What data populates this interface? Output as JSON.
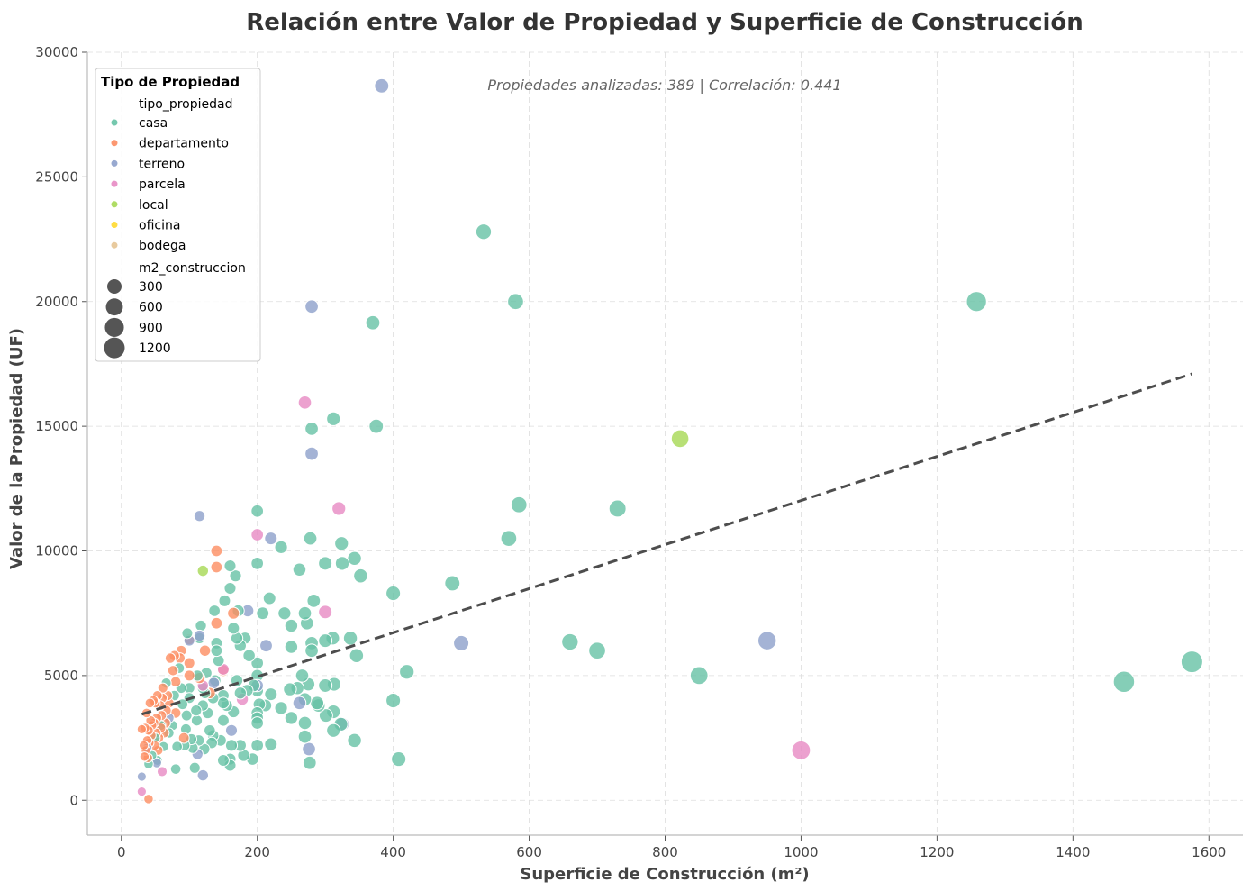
{
  "chart_data": {
    "type": "scatter",
    "title": "Relación entre Valor de Propiedad y Superficie de Construcción",
    "xlabel": "Superficie de Construcción (m²)",
    "ylabel": "Valor de la Propiedad (UF)",
    "xlim": [
      -50,
      1650
    ],
    "ylim": [
      -1400,
      30000
    ],
    "xticks": [
      0,
      200,
      400,
      600,
      800,
      1000,
      1200,
      1400,
      1600
    ],
    "yticks": [
      0,
      5000,
      10000,
      15000,
      20000,
      25000,
      30000
    ],
    "grid": true,
    "annotation": "Propiedades analizadas: 389 | Correlación: 0.441",
    "trendline": {
      "x": [
        30,
        1575
      ],
      "y": [
        3450,
        17100
      ],
      "style": "dashed",
      "color": "#4d4d4d"
    },
    "legend": {
      "title": "Tipo de Propiedad",
      "placement": "top-left",
      "hue_label": "tipo_propiedad",
      "size_label": "m2_construccion",
      "size_values": [
        300,
        600,
        900,
        1200
      ]
    },
    "series": [
      {
        "name": "casa",
        "color": "#66c2a5",
        "points": [
          [
            1575,
            5550
          ],
          [
            1475,
            4750
          ],
          [
            1258,
            20000
          ],
          [
            850,
            5000
          ],
          [
            730,
            11700
          ],
          [
            700,
            6000
          ],
          [
            660,
            6350
          ],
          [
            585,
            11850
          ],
          [
            580,
            20000
          ],
          [
            570,
            10500
          ],
          [
            533,
            22800
          ],
          [
            487,
            8700
          ],
          [
            420,
            5150
          ],
          [
            408,
            1650
          ],
          [
            400,
            8300
          ],
          [
            400,
            4000
          ],
          [
            375,
            15000
          ],
          [
            370,
            19150
          ],
          [
            352,
            9000
          ],
          [
            346,
            5800
          ],
          [
            343,
            9700
          ],
          [
            343,
            2400
          ],
          [
            337,
            6500
          ],
          [
            325,
            9500
          ],
          [
            324,
            10300
          ],
          [
            323,
            3050
          ],
          [
            313,
            4650
          ],
          [
            312,
            15300
          ],
          [
            312,
            3550
          ],
          [
            311,
            6500
          ],
          [
            312,
            2800
          ],
          [
            301,
            3400
          ],
          [
            300,
            6400
          ],
          [
            300,
            9500
          ],
          [
            300,
            4600
          ],
          [
            290,
            3800
          ],
          [
            288,
            3900
          ],
          [
            283,
            8000
          ],
          [
            280,
            14900
          ],
          [
            280,
            6300
          ],
          [
            280,
            6000
          ],
          [
            278,
            10500
          ],
          [
            277,
            1500
          ],
          [
            275,
            4650
          ],
          [
            273,
            7100
          ],
          [
            270,
            7500
          ],
          [
            270,
            4050
          ],
          [
            270,
            3100
          ],
          [
            270,
            2550
          ],
          [
            266,
            5000
          ],
          [
            262,
            9250
          ],
          [
            259,
            4500
          ],
          [
            250,
            7000
          ],
          [
            250,
            6150
          ],
          [
            250,
            3300
          ],
          [
            248,
            4450
          ],
          [
            240,
            7500
          ],
          [
            235,
            10150
          ],
          [
            235,
            3700
          ],
          [
            220,
            4250
          ],
          [
            218,
            8100
          ],
          [
            220,
            2250
          ],
          [
            212,
            3800
          ],
          [
            208,
            7500
          ],
          [
            203,
            3850
          ],
          [
            200,
            11600
          ],
          [
            200,
            9500
          ],
          [
            200,
            5500
          ],
          [
            200,
            5000
          ],
          [
            200,
            4400
          ],
          [
            200,
            3500
          ],
          [
            200,
            3300
          ],
          [
            200,
            3100
          ],
          [
            200,
            2200
          ],
          [
            195,
            4600
          ],
          [
            193,
            1650
          ],
          [
            188,
            5800
          ],
          [
            185,
            4400
          ],
          [
            182,
            6500
          ],
          [
            180,
            1800
          ],
          [
            175,
            6200
          ],
          [
            175,
            4300
          ],
          [
            175,
            2200
          ],
          [
            172,
            7600
          ],
          [
            170,
            4800
          ],
          [
            170,
            6500
          ],
          [
            168,
            9000
          ],
          [
            165,
            6900
          ],
          [
            165,
            3550
          ],
          [
            162,
            2200
          ],
          [
            160,
            9400
          ],
          [
            160,
            8500
          ],
          [
            160,
            1650
          ],
          [
            160,
            1400
          ],
          [
            155,
            3800
          ],
          [
            152,
            8000
          ],
          [
            150,
            4200
          ],
          [
            150,
            3900
          ],
          [
            150,
            3200
          ],
          [
            150,
            1600
          ],
          [
            146,
            2400
          ],
          [
            143,
            5600
          ],
          [
            140,
            6300
          ],
          [
            140,
            6000
          ],
          [
            138,
            4800
          ],
          [
            137,
            7600
          ],
          [
            135,
            4100
          ],
          [
            135,
            2600
          ],
          [
            133,
            2300
          ],
          [
            130,
            2800
          ],
          [
            127,
            3500
          ],
          [
            125,
            5100
          ],
          [
            123,
            4300
          ],
          [
            122,
            2050
          ],
          [
            120,
            4500
          ],
          [
            120,
            3800
          ],
          [
            117,
            7000
          ],
          [
            115,
            6500
          ],
          [
            114,
            2400
          ],
          [
            112,
            5000
          ],
          [
            111,
            3200
          ],
          [
            110,
            3600
          ],
          [
            108,
            1300
          ],
          [
            105,
            2100
          ],
          [
            103,
            2450
          ],
          [
            100,
            4500
          ],
          [
            100,
            4100
          ],
          [
            97,
            6700
          ],
          [
            96,
            3400
          ],
          [
            95,
            2850
          ],
          [
            93,
            2200
          ],
          [
            90,
            3850
          ],
          [
            88,
            4500
          ],
          [
            85,
            5300
          ],
          [
            82,
            2150
          ],
          [
            80,
            1250
          ],
          [
            78,
            4200
          ],
          [
            75,
            3000
          ],
          [
            70,
            2700
          ],
          [
            66,
            4700
          ],
          [
            62,
            2150
          ],
          [
            58,
            3000
          ],
          [
            53,
            1600
          ],
          [
            50,
            2500
          ],
          [
            45,
            1800
          ],
          [
            40,
            1450
          ]
        ]
      },
      {
        "name": "departamento",
        "color": "#fc8d62",
        "points": [
          [
            140,
            10000
          ],
          [
            140,
            9350
          ],
          [
            140,
            7100
          ],
          [
            130,
            4300
          ],
          [
            165,
            7500
          ],
          [
            150,
            5200
          ],
          [
            123,
            6000
          ],
          [
            115,
            4900
          ],
          [
            100,
            6450
          ],
          [
            100,
            5500
          ],
          [
            100,
            5000
          ],
          [
            92,
            2500
          ],
          [
            88,
            6000
          ],
          [
            86,
            5700
          ],
          [
            80,
            4750
          ],
          [
            80,
            3500
          ],
          [
            78,
            5800
          ],
          [
            76,
            5200
          ],
          [
            72,
            5700
          ],
          [
            70,
            3900
          ],
          [
            68,
            4200
          ],
          [
            66,
            3600
          ],
          [
            65,
            3100
          ],
          [
            63,
            2700
          ],
          [
            61,
            4500
          ],
          [
            60,
            4100
          ],
          [
            59,
            3400
          ],
          [
            58,
            2900
          ],
          [
            57,
            3800
          ],
          [
            55,
            2500
          ],
          [
            54,
            2000
          ],
          [
            53,
            4200
          ],
          [
            52,
            3300
          ],
          [
            51,
            2700
          ],
          [
            50,
            3900
          ],
          [
            49,
            2200
          ],
          [
            48,
            3100
          ],
          [
            47,
            4000
          ],
          [
            45,
            3000
          ],
          [
            44,
            2600
          ],
          [
            43,
            3200
          ],
          [
            42,
            3900
          ],
          [
            41,
            2300
          ],
          [
            40,
            2800
          ],
          [
            39,
            1700
          ],
          [
            38,
            2400
          ],
          [
            37,
            3500
          ],
          [
            36,
            2000
          ],
          [
            35,
            2900
          ],
          [
            34,
            1750
          ],
          [
            33,
            2200
          ],
          [
            30,
            2850
          ],
          [
            40,
            50
          ]
        ]
      },
      {
        "name": "terreno",
        "color": "#8da0cb",
        "points": [
          [
            383,
            28650
          ],
          [
            280,
            19800
          ],
          [
            280,
            13900
          ],
          [
            950,
            6400
          ],
          [
            500,
            6300
          ],
          [
            325,
            3050
          ],
          [
            276,
            2050
          ],
          [
            262,
            3900
          ],
          [
            220,
            10500
          ],
          [
            213,
            6200
          ],
          [
            200,
            4600
          ],
          [
            186,
            7600
          ],
          [
            162,
            2800
          ],
          [
            136,
            4700
          ],
          [
            115,
            11400
          ],
          [
            115,
            6600
          ],
          [
            112,
            1850
          ],
          [
            120,
            1000
          ],
          [
            100,
            6400
          ],
          [
            70,
            3300
          ],
          [
            52,
            1500
          ],
          [
            38,
            2100
          ],
          [
            30,
            950
          ]
        ]
      },
      {
        "name": "parcela",
        "color": "#e78ac3",
        "points": [
          [
            1000,
            2000
          ],
          [
            270,
            15950
          ],
          [
            320,
            11700
          ],
          [
            300,
            7550
          ],
          [
            200,
            10650
          ],
          [
            178,
            4050
          ],
          [
            150,
            5250
          ],
          [
            120,
            4600
          ],
          [
            60,
            1150
          ],
          [
            30,
            350
          ]
        ]
      },
      {
        "name": "local",
        "color": "#a6d854",
        "points": [
          [
            822,
            14500
          ],
          [
            120,
            9200
          ]
        ]
      },
      {
        "name": "oficina",
        "color": "#ffd92f",
        "points": []
      },
      {
        "name": "bodega",
        "color": "#e5c494",
        "points": []
      }
    ]
  }
}
